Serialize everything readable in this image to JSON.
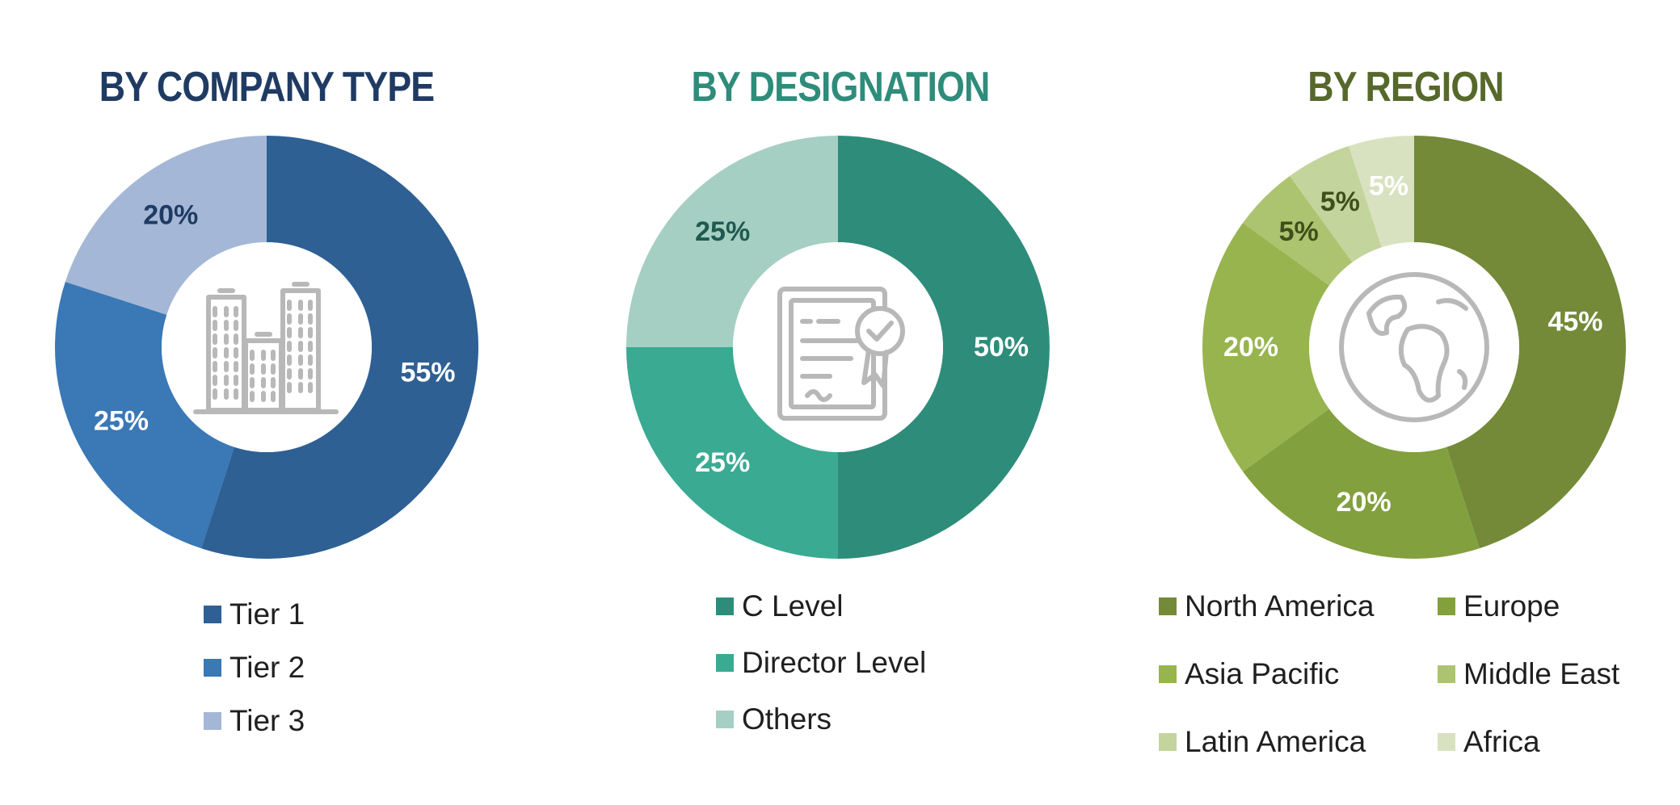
{
  "chart_data": [
    {
      "type": "pie",
      "title": "BY COMPANY TYPE",
      "title_color": "#1f3b63",
      "categories": [
        "Tier 1",
        "Tier 2",
        "Tier 3"
      ],
      "values": [
        55,
        25,
        20
      ],
      "labels": [
        "55%",
        "25%",
        "20%"
      ],
      "colors": [
        "#2e6094",
        "#3a78b6",
        "#a5b7d6"
      ],
      "label_colors": [
        "#ffffff",
        "#ffffff",
        "#1f3b63"
      ],
      "center_icon": "office-buildings-icon",
      "legend_placement": "bottom"
    },
    {
      "type": "pie",
      "title": "BY DESIGNATION",
      "title_color": "#2e8c7a",
      "categories": [
        "C Level",
        "Director Level",
        "Others"
      ],
      "values": [
        50,
        25,
        25
      ],
      "labels": [
        "50%",
        "25%",
        "25%"
      ],
      "colors": [
        "#2e8c7a",
        "#3aaa92",
        "#a6cfc3"
      ],
      "label_colors": [
        "#ffffff",
        "#ffffff",
        "#1f5a4e"
      ],
      "center_icon": "certificate-icon",
      "legend_placement": "bottom"
    },
    {
      "type": "pie",
      "title": "BY REGION",
      "title_color": "#56682a",
      "categories": [
        "North America",
        "Europe",
        "Asia Pacific",
        "Middle East",
        "Latin America",
        "Africa"
      ],
      "values": [
        45,
        20,
        20,
        5,
        5,
        5
      ],
      "labels": [
        "45%",
        "20%",
        "20%",
        "5%",
        "5%",
        "5%"
      ],
      "colors": [
        "#748a38",
        "#82a03e",
        "#97b44e",
        "#acc46f",
        "#c3d49c",
        "#d8e2c0"
      ],
      "label_colors": [
        "#ffffff",
        "#ffffff",
        "#ffffff",
        "#3e4f1c",
        "#3e4f1c",
        "#ffffff"
      ],
      "center_icon": "globe-icon",
      "legend_placement": "bottom"
    }
  ]
}
